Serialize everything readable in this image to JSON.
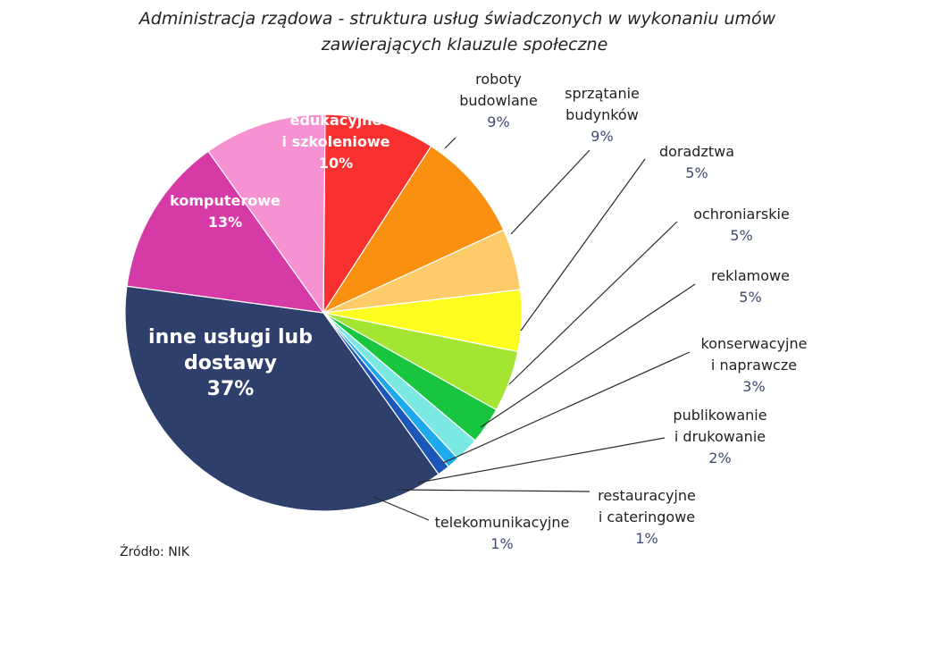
{
  "chart_data": {
    "type": "pie",
    "title": "Administracja rządowa - struktura usług świadczonych w wykonaniu umów zawierających klauzule społeczne",
    "title_lines": [
      "Administracja rządowa - struktura usług świadczonych w wykonaniu umów",
      "zawierających klauzule społeczne"
    ],
    "source": "Źródło: NIK",
    "slices": [
      {
        "key": "roboty",
        "name_lines": [
          "roboty",
          "budowlane"
        ],
        "pct_label": "9%",
        "value": 9,
        "color": "#f8302f"
      },
      {
        "key": "sprzatanie",
        "name_lines": [
          "sprzątanie",
          "budynków"
        ],
        "pct_label": "9%",
        "value": 9,
        "color": "#f9900f"
      },
      {
        "key": "doradztwa",
        "name_lines": [
          "doradztwa"
        ],
        "pct_label": "5%",
        "value": 5,
        "color": "#fecb6a"
      },
      {
        "key": "ochroniarskie",
        "name_lines": [
          "ochroniarskie"
        ],
        "pct_label": "5%",
        "value": 5,
        "color": "#fdfd20"
      },
      {
        "key": "reklamowe",
        "name_lines": [
          "reklamowe"
        ],
        "pct_label": "5%",
        "value": 5,
        "color": "#a3e532"
      },
      {
        "key": "konserwacyjne",
        "name_lines": [
          "konserwacyjne",
          "i naprawcze"
        ],
        "pct_label": "3%",
        "value": 3,
        "color": "#17c63e"
      },
      {
        "key": "publikowanie",
        "name_lines": [
          "publikowanie",
          "i drukowanie"
        ],
        "pct_label": "2%",
        "value": 2,
        "color": "#7ce8e2"
      },
      {
        "key": "restauracyjne",
        "name_lines": [
          "restauracyjne",
          "i cateringowe"
        ],
        "pct_label": "1%",
        "value": 1,
        "color": "#1ea9ec"
      },
      {
        "key": "telekomunikacyjne",
        "name_lines": [
          "telekomunikacyjne"
        ],
        "pct_label": "1%",
        "value": 1,
        "color": "#1c56b8"
      },
      {
        "key": "inne",
        "name_lines": [
          "inne usługi lub",
          "dostawy"
        ],
        "pct_label": "37%",
        "value": 37,
        "color": "#2f3f6b"
      },
      {
        "key": "komputerowe",
        "name_lines": [
          "komputerowe"
        ],
        "pct_label": "13%",
        "value": 13,
        "color": "#d63aa6"
      },
      {
        "key": "edukacyjne",
        "name_lines": [
          "edukacyjne",
          "i szkoleniowe"
        ],
        "pct_label": "10%",
        "value": 10,
        "color": "#f792d2"
      }
    ]
  }
}
